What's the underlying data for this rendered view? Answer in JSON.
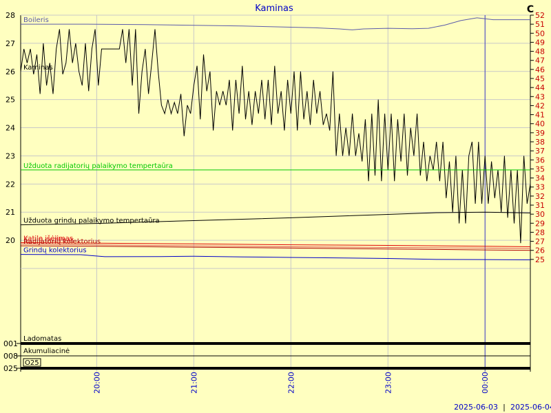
{
  "chart_data": {
    "type": "line",
    "title": "Kaminas",
    "unit_label": "C",
    "x_ticks": [
      "20:00",
      "21:00",
      "22:00",
      "23:00",
      "00:00"
    ],
    "x_range": [
      "19:13",
      "00:28"
    ],
    "cursor_time": "00:00",
    "dates": [
      "2025-06-03",
      "2025-06-04"
    ],
    "date_separator": "|",
    "left_axis": {
      "min": 19.0,
      "max": 28.0,
      "ticks": [
        20,
        21,
        22,
        23,
        24,
        25,
        26,
        27,
        28
      ]
    },
    "right_axis": {
      "min": 24.0,
      "max": 52.0,
      "ticks": [
        25,
        26,
        27,
        28,
        29,
        30,
        31,
        32,
        33,
        34,
        35,
        36,
        37,
        38,
        39,
        40,
        41,
        42,
        43,
        44,
        45,
        46,
        47,
        48,
        49,
        50,
        51,
        52
      ]
    },
    "grid": true,
    "colors": {
      "background": "#ffffc0",
      "grid": "#c8c8c8",
      "title": "#0000c8",
      "right_axis_labels": "#c80000",
      "cursor": "#4040c0"
    },
    "series": [
      {
        "name": "Boileris",
        "color": "#5a5aaa",
        "axis": "right",
        "points": [
          [
            "19:13",
            51.0
          ],
          [
            "19:50",
            51.0
          ],
          [
            "20:30",
            50.95
          ],
          [
            "21:00",
            50.88
          ],
          [
            "21:30",
            50.8
          ],
          [
            "22:00",
            50.67
          ],
          [
            "22:15",
            50.6
          ],
          [
            "22:30",
            50.48
          ],
          [
            "22:38",
            50.37
          ],
          [
            "22:45",
            50.48
          ],
          [
            "23:00",
            50.55
          ],
          [
            "23:15",
            50.5
          ],
          [
            "23:25",
            50.55
          ],
          [
            "23:35",
            50.9
          ],
          [
            "23:45",
            51.4
          ],
          [
            "23:55",
            51.7
          ],
          [
            "00:05",
            51.5
          ],
          [
            "00:28",
            51.5
          ]
        ]
      },
      {
        "name": "Kaminas",
        "color": "#000000",
        "axis": "left",
        "points": [
          [
            "19:13",
            26.0
          ],
          [
            "19:15",
            26.8
          ],
          [
            "19:17",
            26.3
          ],
          [
            "19:19",
            26.8
          ],
          [
            "19:21",
            25.9
          ],
          [
            "19:23",
            26.6
          ],
          [
            "19:25",
            25.2
          ],
          [
            "19:27",
            27.0
          ],
          [
            "19:29",
            25.5
          ],
          [
            "19:31",
            26.3
          ],
          [
            "19:33",
            25.2
          ],
          [
            "19:35",
            26.8
          ],
          [
            "19:37",
            27.5
          ],
          [
            "19:39",
            25.9
          ],
          [
            "19:41",
            26.3
          ],
          [
            "19:43",
            27.5
          ],
          [
            "19:45",
            26.3
          ],
          [
            "19:47",
            27.0
          ],
          [
            "19:49",
            26.0
          ],
          [
            "19:51",
            25.5
          ],
          [
            "19:53",
            27.0
          ],
          [
            "19:55",
            25.3
          ],
          [
            "19:57",
            26.8
          ],
          [
            "19:59",
            27.5
          ],
          [
            "20:01",
            25.5
          ],
          [
            "20:03",
            26.8
          ],
          [
            "20:05",
            26.8
          ],
          [
            "20:08",
            26.8
          ],
          [
            "20:11",
            26.8
          ],
          [
            "20:14",
            26.8
          ],
          [
            "20:16",
            27.5
          ],
          [
            "20:18",
            26.3
          ],
          [
            "20:20",
            27.5
          ],
          [
            "20:22",
            25.5
          ],
          [
            "20:24",
            27.5
          ],
          [
            "20:26",
            24.5
          ],
          [
            "20:28",
            26.0
          ],
          [
            "20:30",
            26.8
          ],
          [
            "20:32",
            25.2
          ],
          [
            "20:34",
            26.3
          ],
          [
            "20:36",
            27.5
          ],
          [
            "20:38",
            26.0
          ],
          [
            "20:40",
            24.8
          ],
          [
            "20:42",
            24.5
          ],
          [
            "20:44",
            25.0
          ],
          [
            "20:46",
            24.5
          ],
          [
            "20:48",
            24.9
          ],
          [
            "20:50",
            24.5
          ],
          [
            "20:52",
            25.2
          ],
          [
            "20:54",
            23.7
          ],
          [
            "20:56",
            24.8
          ],
          [
            "20:58",
            24.5
          ],
          [
            "21:00",
            25.5
          ],
          [
            "21:02",
            26.2
          ],
          [
            "21:04",
            24.3
          ],
          [
            "21:06",
            26.6
          ],
          [
            "21:08",
            25.3
          ],
          [
            "21:10",
            26.0
          ],
          [
            "21:12",
            23.9
          ],
          [
            "21:14",
            25.3
          ],
          [
            "21:16",
            24.8
          ],
          [
            "21:18",
            25.3
          ],
          [
            "21:20",
            24.8
          ],
          [
            "21:22",
            25.7
          ],
          [
            "21:24",
            23.9
          ],
          [
            "21:26",
            25.7
          ],
          [
            "21:28",
            24.5
          ],
          [
            "21:30",
            26.2
          ],
          [
            "21:32",
            24.3
          ],
          [
            "21:34",
            25.3
          ],
          [
            "21:36",
            24.1
          ],
          [
            "21:38",
            25.3
          ],
          [
            "21:40",
            24.5
          ],
          [
            "21:42",
            25.7
          ],
          [
            "21:44",
            24.3
          ],
          [
            "21:46",
            25.7
          ],
          [
            "21:48",
            24.1
          ],
          [
            "21:50",
            26.2
          ],
          [
            "21:52",
            24.5
          ],
          [
            "21:54",
            25.3
          ],
          [
            "21:56",
            23.9
          ],
          [
            "21:58",
            25.7
          ],
          [
            "22:00",
            24.5
          ],
          [
            "22:02",
            26.0
          ],
          [
            "22:04",
            23.9
          ],
          [
            "22:06",
            26.0
          ],
          [
            "22:08",
            24.3
          ],
          [
            "22:10",
            25.3
          ],
          [
            "22:12",
            24.1
          ],
          [
            "22:14",
            25.7
          ],
          [
            "22:16",
            24.5
          ],
          [
            "22:18",
            25.3
          ],
          [
            "22:20",
            24.1
          ],
          [
            "22:22",
            24.5
          ],
          [
            "22:24",
            23.9
          ],
          [
            "22:26",
            26.0
          ],
          [
            "22:28",
            23.0
          ],
          [
            "22:30",
            24.5
          ],
          [
            "22:32",
            23.0
          ],
          [
            "22:34",
            24.0
          ],
          [
            "22:36",
            23.0
          ],
          [
            "22:38",
            24.5
          ],
          [
            "22:40",
            23.0
          ],
          [
            "22:42",
            23.8
          ],
          [
            "22:44",
            22.8
          ],
          [
            "22:46",
            24.3
          ],
          [
            "22:48",
            22.1
          ],
          [
            "22:50",
            24.5
          ],
          [
            "22:52",
            22.3
          ],
          [
            "22:54",
            25.0
          ],
          [
            "22:56",
            22.1
          ],
          [
            "22:58",
            24.5
          ],
          [
            "23:00",
            22.5
          ],
          [
            "23:02",
            24.5
          ],
          [
            "23:04",
            22.1
          ],
          [
            "23:06",
            24.3
          ],
          [
            "23:08",
            22.8
          ],
          [
            "23:10",
            24.5
          ],
          [
            "23:12",
            22.3
          ],
          [
            "23:14",
            24.0
          ],
          [
            "23:16",
            23.0
          ],
          [
            "23:18",
            24.5
          ],
          [
            "23:20",
            22.3
          ],
          [
            "23:22",
            23.5
          ],
          [
            "23:24",
            22.1
          ],
          [
            "23:26",
            23.0
          ],
          [
            "23:28",
            22.5
          ],
          [
            "23:30",
            23.5
          ],
          [
            "23:32",
            22.1
          ],
          [
            "23:34",
            23.5
          ],
          [
            "23:36",
            21.5
          ],
          [
            "23:38",
            22.8
          ],
          [
            "23:40",
            21.0
          ],
          [
            "23:42",
            23.0
          ],
          [
            "23:44",
            20.6
          ],
          [
            "23:46",
            22.5
          ],
          [
            "23:48",
            20.6
          ],
          [
            "23:50",
            23.0
          ],
          [
            "23:52",
            23.5
          ],
          [
            "23:54",
            21.3
          ],
          [
            "23:56",
            23.5
          ],
          [
            "23:58",
            21.3
          ],
          [
            "00:00",
            23.0
          ],
          [
            "00:02",
            21.3
          ],
          [
            "00:04",
            22.8
          ],
          [
            "00:06",
            21.5
          ],
          [
            "00:08",
            22.5
          ],
          [
            "00:10",
            21.0
          ],
          [
            "00:12",
            23.0
          ],
          [
            "00:14",
            20.8
          ],
          [
            "00:16",
            22.5
          ],
          [
            "00:18",
            20.6
          ],
          [
            "00:20",
            22.5
          ],
          [
            "00:22",
            19.9
          ],
          [
            "00:24",
            23.0
          ],
          [
            "00:26",
            21.3
          ],
          [
            "00:28",
            22.0
          ]
        ]
      },
      {
        "name": "Užduota radijatorių palaikymo tempertaūra",
        "color": "#00c800",
        "axis": "left",
        "points": [
          [
            "19:13",
            22.5
          ],
          [
            "00:28",
            22.5
          ]
        ]
      },
      {
        "name": "Užduota grindų palaikymo tempertaūra",
        "color": "#000000",
        "axis": "left",
        "points": [
          [
            "19:13",
            20.55
          ],
          [
            "20:00",
            20.6
          ],
          [
            "21:00",
            20.7
          ],
          [
            "22:00",
            20.8
          ],
          [
            "23:00",
            20.92
          ],
          [
            "23:30",
            20.98
          ],
          [
            "00:00",
            21.0
          ],
          [
            "00:28",
            20.97
          ]
        ]
      },
      {
        "name": "Katilo išėjimas",
        "color": "#e00000",
        "axis": "right",
        "points": [
          [
            "19:13",
            26.85
          ],
          [
            "20:00",
            26.8
          ],
          [
            "21:00",
            26.72
          ],
          [
            "22:00",
            26.62
          ],
          [
            "23:00",
            26.55
          ],
          [
            "00:00",
            26.45
          ],
          [
            "00:28",
            26.4
          ]
        ]
      },
      {
        "name": "Katilo grįžimas",
        "color": "#e05050",
        "axis": "right",
        "points": [
          [
            "19:13",
            26.7
          ],
          [
            "20:00",
            26.6
          ],
          [
            "21:00",
            26.5
          ],
          [
            "22:00",
            26.4
          ],
          [
            "23:00",
            26.32
          ],
          [
            "00:00",
            26.25
          ],
          [
            "00:28",
            26.2
          ]
        ]
      },
      {
        "name": "Radijatorių kolektorius",
        "color": "#b00000",
        "axis": "right",
        "points": [
          [
            "19:13",
            26.5
          ],
          [
            "20:00",
            26.45
          ],
          [
            "21:00",
            26.35
          ],
          [
            "22:00",
            26.25
          ],
          [
            "23:00",
            26.15
          ],
          [
            "00:00",
            26.05
          ],
          [
            "00:28",
            26.0
          ]
        ]
      },
      {
        "name": "Grindų kolektorius",
        "color": "#0000c8",
        "axis": "right",
        "points": [
          [
            "19:13",
            25.55
          ],
          [
            "19:50",
            25.52
          ],
          [
            "20:05",
            25.3
          ],
          [
            "20:40",
            25.32
          ],
          [
            "21:00",
            25.35
          ],
          [
            "21:30",
            25.28
          ],
          [
            "22:00",
            25.22
          ],
          [
            "23:00",
            25.1
          ],
          [
            "23:30",
            25.0
          ],
          [
            "00:00",
            24.98
          ],
          [
            "00:28",
            24.95
          ]
        ]
      }
    ],
    "state_rows": [
      {
        "code": "001",
        "name": "Ladomatas",
        "state": "on"
      },
      {
        "code": "008",
        "name": "Akumuliacinė",
        "state": "off"
      },
      {
        "code": "025",
        "name": "O25",
        "state": "on"
      }
    ]
  }
}
